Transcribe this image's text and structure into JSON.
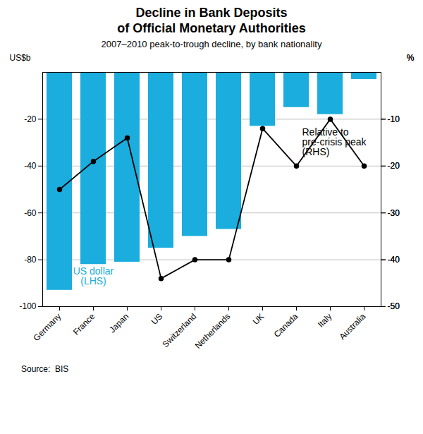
{
  "chart_data": {
    "type": "bar",
    "title": "Decline in Bank Deposits\nof Official Monetary Authorities",
    "subtitle": "2007–2010 peak-to-trough decline, by bank nationality",
    "source": "Source:  BIS",
    "categories": [
      "Germany",
      "France",
      "Japan",
      "US",
      "Switzerland",
      "Netherlands",
      "UK",
      "Canada",
      "Italy",
      "Australia"
    ],
    "ylabel": "US$b",
    "y2label": "%",
    "ylim": [
      -100,
      0
    ],
    "yticks": [
      -100,
      -80,
      -60,
      -40,
      -20
    ],
    "y2lim": [
      -50,
      0
    ],
    "y2ticks": [
      -50,
      -40,
      -30,
      -20,
      -10
    ],
    "grid": true,
    "series": [
      {
        "type": "bar",
        "color": "#1aadde",
        "values": [
          -93,
          -82,
          -81,
          -75,
          -70,
          -67,
          -23,
          -15,
          -18,
          -3
        ]
      },
      {
        "type": "line",
        "color": "#000000",
        "marker": "circle",
        "axis": "y2",
        "values": [
          -25,
          -19,
          -14,
          -44,
          -40,
          -40,
          -12,
          -20,
          -10,
          -20
        ]
      }
    ],
    "annotations": [
      {
        "text": "US dollar\n(LHS)",
        "x": "France",
        "y": -87,
        "color": "#1aadde"
      },
      {
        "text": "Relative to\npre-crisis peak\n(RHS)",
        "x": "Canada",
        "y": -24,
        "color": "#000000"
      }
    ]
  }
}
